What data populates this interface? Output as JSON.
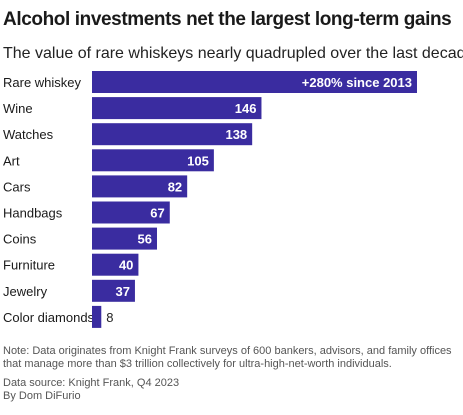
{
  "title": "Alcohol investments net the largest long-term gains",
  "subtitle": "The value of rare whiskeys nearly quadrupled over the last decade.",
  "note": "Note: Data originates from Knight Frank surveys of 600 bankers, advisors, and family offices that manage more than $3 trillion collectively for ultra-high-net-worth individuals.",
  "source": "Data source: Knight Frank, Q4 2023",
  "byline": "By Dom DiFurio",
  "colors": {
    "bar": "#3a2ca0",
    "label_inside": "#ffffff",
    "label_outside": "#222222",
    "text": "#1a1a1a"
  },
  "chart_data": {
    "type": "bar",
    "orientation": "horizontal",
    "categories": [
      "Rare whiskey",
      "Wine",
      "Watches",
      "Art",
      "Cars",
      "Handbags",
      "Coins",
      "Furniture",
      "Jewelry",
      "Color diamonds"
    ],
    "values": [
      280,
      146,
      138,
      105,
      82,
      67,
      56,
      40,
      37,
      8
    ],
    "data_labels": [
      "+280% since 2013",
      "146",
      "138",
      "105",
      "82",
      "67",
      "56",
      "40",
      "37",
      "8"
    ],
    "xlim": [
      0,
      280
    ],
    "grid": false,
    "legend": "none"
  }
}
